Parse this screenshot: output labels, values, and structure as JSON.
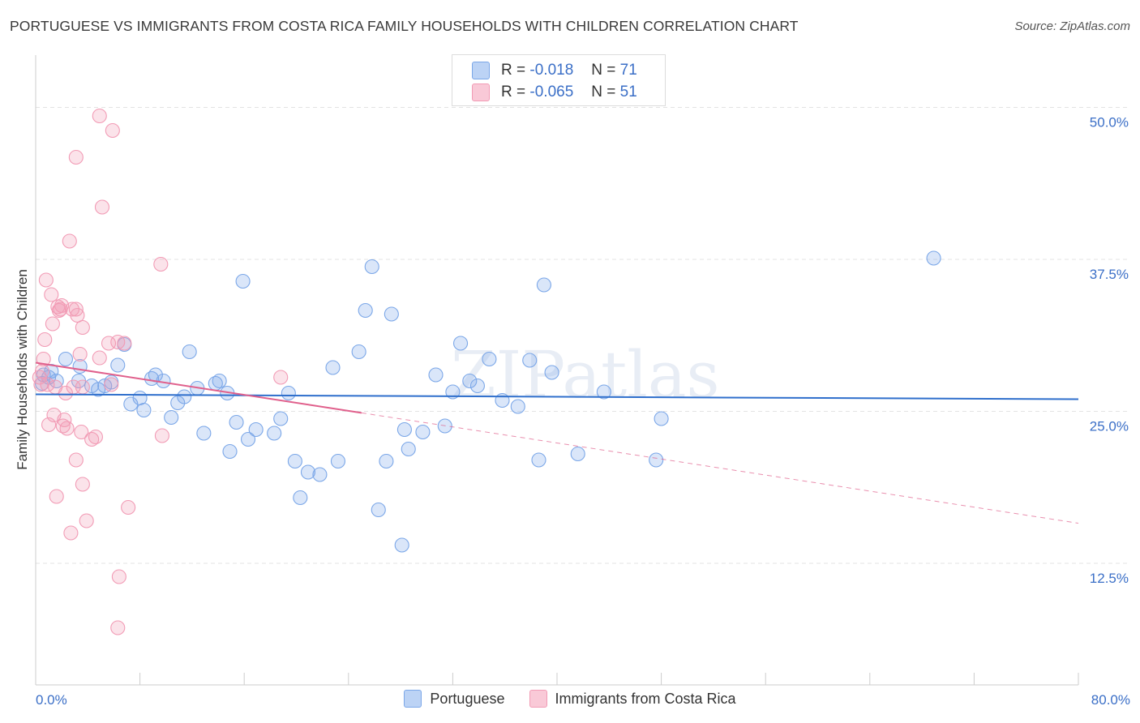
{
  "title": "PORTUGUESE VS IMMIGRANTS FROM COSTA RICA FAMILY HOUSEHOLDS WITH CHILDREN CORRELATION CHART",
  "source": "Source: ZipAtlas.com",
  "watermark": "ZIPatlas",
  "legend_top": [
    {
      "r_label": "R =",
      "r_value": "-0.018",
      "n_label": "N =",
      "n_value": "71",
      "color": "#7ba7e8"
    },
    {
      "r_label": "R =",
      "r_value": "-0.065",
      "n_label": "N =",
      "n_value": "51",
      "color": "#f29bb5"
    }
  ],
  "chart_data": {
    "type": "scatter",
    "title": "PORTUGUESE VS IMMIGRANTS FROM COSTA RICA FAMILY HOUSEHOLDS WITH CHILDREN CORRELATION CHART",
    "xlabel": "",
    "ylabel": "Family Households with Children",
    "xlim": [
      0,
      80
    ],
    "ylim": [
      2.5,
      53.5
    ],
    "x_tick_labels": [
      "0.0%",
      "80.0%"
    ],
    "y_ticks": [
      12.5,
      25.0,
      37.5,
      50.0
    ],
    "y_tick_labels": [
      "12.5%",
      "25.0%",
      "37.5%",
      "50.0%"
    ],
    "grid": true,
    "legend_position": "bottom",
    "series": [
      {
        "name": "Portuguese",
        "color": "#7ba7e8",
        "line_color": "#2f6fcc",
        "trend": {
          "x0": 0,
          "y0": 26.4,
          "x1": 80,
          "y1": 26.0,
          "solid_to": 80
        },
        "points": [
          [
            0.5,
            27.3
          ],
          [
            0.6,
            28.0
          ],
          [
            1.0,
            27.8
          ],
          [
            1.2,
            28.3
          ],
          [
            1.6,
            27.5
          ],
          [
            2.3,
            29.3
          ],
          [
            3.3,
            27.5
          ],
          [
            3.4,
            28.7
          ],
          [
            4.3,
            27.1
          ],
          [
            4.8,
            26.8
          ],
          [
            5.3,
            27.1
          ],
          [
            5.8,
            27.4
          ],
          [
            6.3,
            28.8
          ],
          [
            6.8,
            30.5
          ],
          [
            7.3,
            25.6
          ],
          [
            8.0,
            26.1
          ],
          [
            8.3,
            25.1
          ],
          [
            8.9,
            27.7
          ],
          [
            9.2,
            28.0
          ],
          [
            9.8,
            27.5
          ],
          [
            10.4,
            24.5
          ],
          [
            10.9,
            25.7
          ],
          [
            11.4,
            26.2
          ],
          [
            11.8,
            29.9
          ],
          [
            12.4,
            26.9
          ],
          [
            12.9,
            23.2
          ],
          [
            13.8,
            27.3
          ],
          [
            14.1,
            27.5
          ],
          [
            14.7,
            26.5
          ],
          [
            14.9,
            21.7
          ],
          [
            15.4,
            24.1
          ],
          [
            15.9,
            35.7
          ],
          [
            16.3,
            22.7
          ],
          [
            16.9,
            23.5
          ],
          [
            18.3,
            23.2
          ],
          [
            18.8,
            24.4
          ],
          [
            19.4,
            26.5
          ],
          [
            19.9,
            20.9
          ],
          [
            20.3,
            17.9
          ],
          [
            20.9,
            20.0
          ],
          [
            21.8,
            19.8
          ],
          [
            22.8,
            28.6
          ],
          [
            23.2,
            20.9
          ],
          [
            24.8,
            29.9
          ],
          [
            25.3,
            33.3
          ],
          [
            25.8,
            36.9
          ],
          [
            26.3,
            16.9
          ],
          [
            26.9,
            20.9
          ],
          [
            27.3,
            33.0
          ],
          [
            28.1,
            14.0
          ],
          [
            28.3,
            23.5
          ],
          [
            28.6,
            21.9
          ],
          [
            29.7,
            23.3
          ],
          [
            30.7,
            28.0
          ],
          [
            31.4,
            23.8
          ],
          [
            32.0,
            26.6
          ],
          [
            32.6,
            30.6
          ],
          [
            33.3,
            27.5
          ],
          [
            33.9,
            27.1
          ],
          [
            34.8,
            29.3
          ],
          [
            35.8,
            25.9
          ],
          [
            37.0,
            25.4
          ],
          [
            37.9,
            29.2
          ],
          [
            38.6,
            21.0
          ],
          [
            39.0,
            35.4
          ],
          [
            39.6,
            28.2
          ],
          [
            41.6,
            21.5
          ],
          [
            43.6,
            26.6
          ],
          [
            47.6,
            21.0
          ],
          [
            48.0,
            24.4
          ],
          [
            68.9,
            37.6
          ]
        ]
      },
      {
        "name": "Immigrants from Costa Rica",
        "color": "#f29bb5",
        "line_color": "#e0608c",
        "trend": {
          "x0": 0,
          "y0": 29.0,
          "x1": 80,
          "y1": 15.8,
          "solid_to": 25
        },
        "points": [
          [
            0.3,
            27.8
          ],
          [
            0.4,
            27.2
          ],
          [
            0.5,
            28.3
          ],
          [
            0.6,
            29.3
          ],
          [
            0.7,
            30.9
          ],
          [
            0.8,
            35.8
          ],
          [
            0.9,
            27.2
          ],
          [
            1.0,
            23.9
          ],
          [
            1.2,
            34.6
          ],
          [
            1.3,
            32.2
          ],
          [
            1.4,
            24.7
          ],
          [
            1.5,
            27.0
          ],
          [
            1.6,
            18.0
          ],
          [
            1.7,
            33.6
          ],
          [
            1.8,
            33.3
          ],
          [
            1.9,
            33.4
          ],
          [
            2.0,
            33.7
          ],
          [
            2.1,
            23.8
          ],
          [
            2.2,
            24.3
          ],
          [
            2.3,
            26.5
          ],
          [
            2.4,
            23.6
          ],
          [
            2.6,
            39.0
          ],
          [
            2.7,
            15.0
          ],
          [
            2.8,
            33.4
          ],
          [
            2.9,
            27.0
          ],
          [
            3.1,
            45.9
          ],
          [
            3.1,
            33.4
          ],
          [
            3.1,
            21.0
          ],
          [
            3.2,
            32.9
          ],
          [
            3.4,
            29.7
          ],
          [
            3.5,
            23.3
          ],
          [
            3.6,
            31.9
          ],
          [
            3.6,
            19.0
          ],
          [
            3.9,
            16.0
          ],
          [
            4.3,
            22.7
          ],
          [
            4.6,
            22.9
          ],
          [
            4.9,
            49.3
          ],
          [
            4.9,
            29.4
          ],
          [
            5.1,
            41.8
          ],
          [
            5.6,
            30.6
          ],
          [
            5.9,
            48.1
          ],
          [
            5.8,
            27.2
          ],
          [
            6.3,
            30.7
          ],
          [
            6.4,
            11.4
          ],
          [
            6.3,
            7.2
          ],
          [
            6.8,
            30.6
          ],
          [
            7.1,
            17.1
          ],
          [
            9.6,
            37.1
          ],
          [
            9.7,
            23.0
          ],
          [
            18.8,
            27.8
          ],
          [
            3.6,
            27.0
          ]
        ]
      }
    ]
  },
  "legend_bottom": [
    "Portuguese",
    "Immigrants from Costa Rica"
  ]
}
